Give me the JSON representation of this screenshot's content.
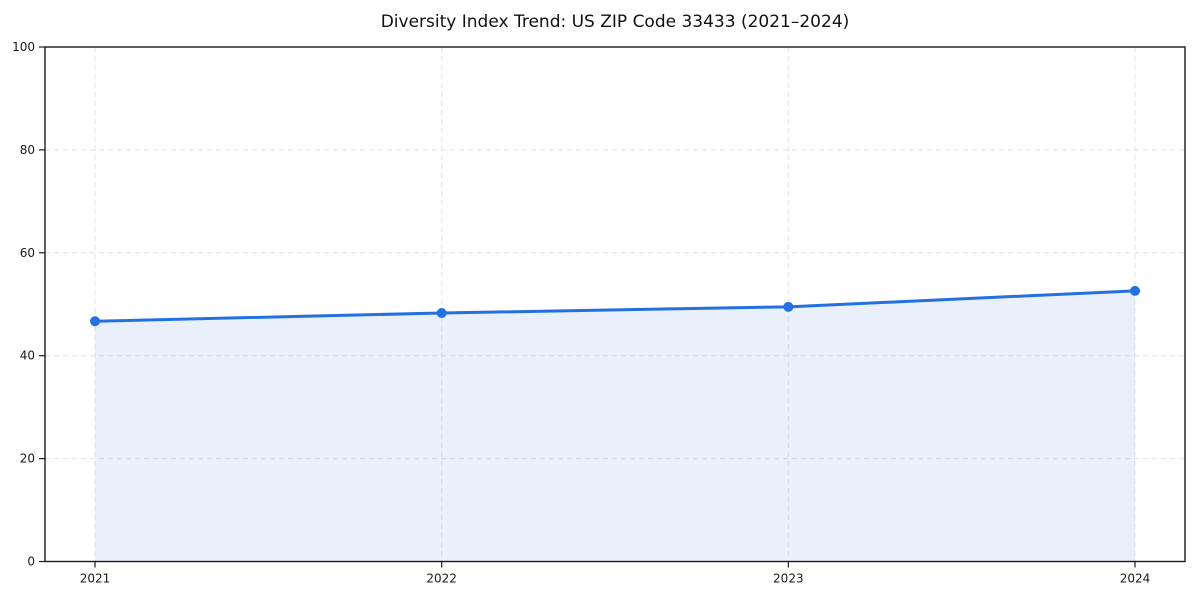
{
  "chart_data": {
    "type": "line",
    "subtype": "area-filled-line-with-markers",
    "title": "Diversity Index Trend: US ZIP Code 33433 (2021–2024)",
    "categories": [
      "2021",
      "2022",
      "2023",
      "2024"
    ],
    "series": [
      {
        "name": "Diversity Index",
        "values": [
          46.7,
          48.3,
          49.5,
          52.6
        ]
      }
    ],
    "xlabel": "",
    "ylabel": "",
    "ylim": [
      0,
      100
    ],
    "yticks": [
      0,
      20,
      40,
      60,
      80,
      100
    ],
    "grid": "dashed-both-axes",
    "legend": "none",
    "colors": {
      "line": "#2470e0",
      "marker": "#2470e0",
      "area_fill": "#2470e0",
      "area_opacity": 0.1,
      "grid": "#e1e1e1",
      "axis": "#1a1a1a",
      "text": "#1a1a1a",
      "background": "#ffffff"
    }
  }
}
